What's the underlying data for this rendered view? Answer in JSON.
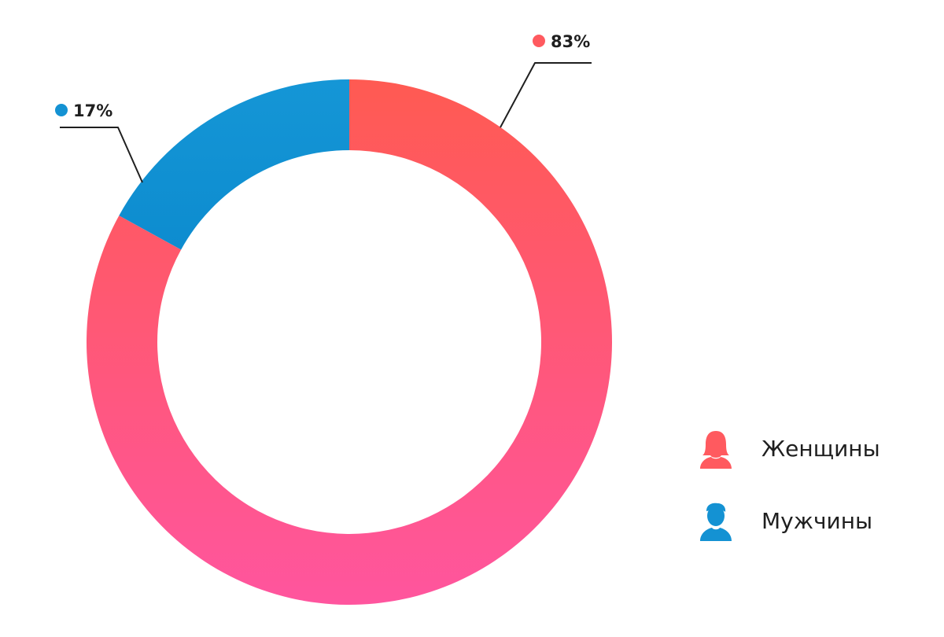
{
  "chart_data": {
    "type": "pie",
    "subtype": "donut",
    "categories": [
      "Женщины",
      "Мужчины"
    ],
    "values": [
      83,
      17
    ],
    "labels": [
      "83%",
      "17%"
    ],
    "colors": {
      "Женщины": [
        "#ff5a52",
        "#ff559e"
      ],
      "Мужчины": [
        "#1596d6",
        "#0d8ccf"
      ]
    },
    "legend_position": "bottom-right"
  },
  "legend": {
    "items": [
      {
        "label": "Женщины",
        "icon": "female-user-icon",
        "color": "#ff5a5f"
      },
      {
        "label": "Мужчины",
        "icon": "male-user-icon",
        "color": "#1492d3"
      }
    ]
  }
}
